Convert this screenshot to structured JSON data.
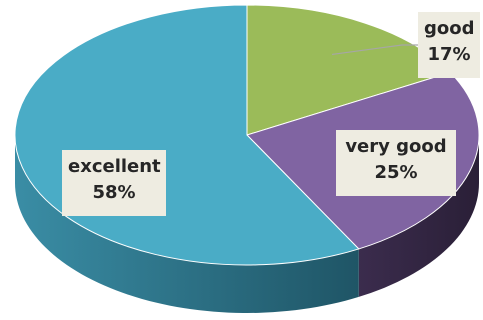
{
  "chart_data": {
    "type": "pie",
    "categories": [
      "excellent",
      "very good",
      "good"
    ],
    "values": [
      58,
      25,
      17
    ],
    "value_labels": [
      "58%",
      "25%",
      "17%"
    ],
    "colors": [
      "#4aacc6",
      "#8064a2",
      "#9bbb59"
    ],
    "side_colors": [
      "#2b6f86",
      "#3b2c4d",
      "#5b7232"
    ],
    "label_background": "#eeece1",
    "style": "3d",
    "legend": "none"
  }
}
